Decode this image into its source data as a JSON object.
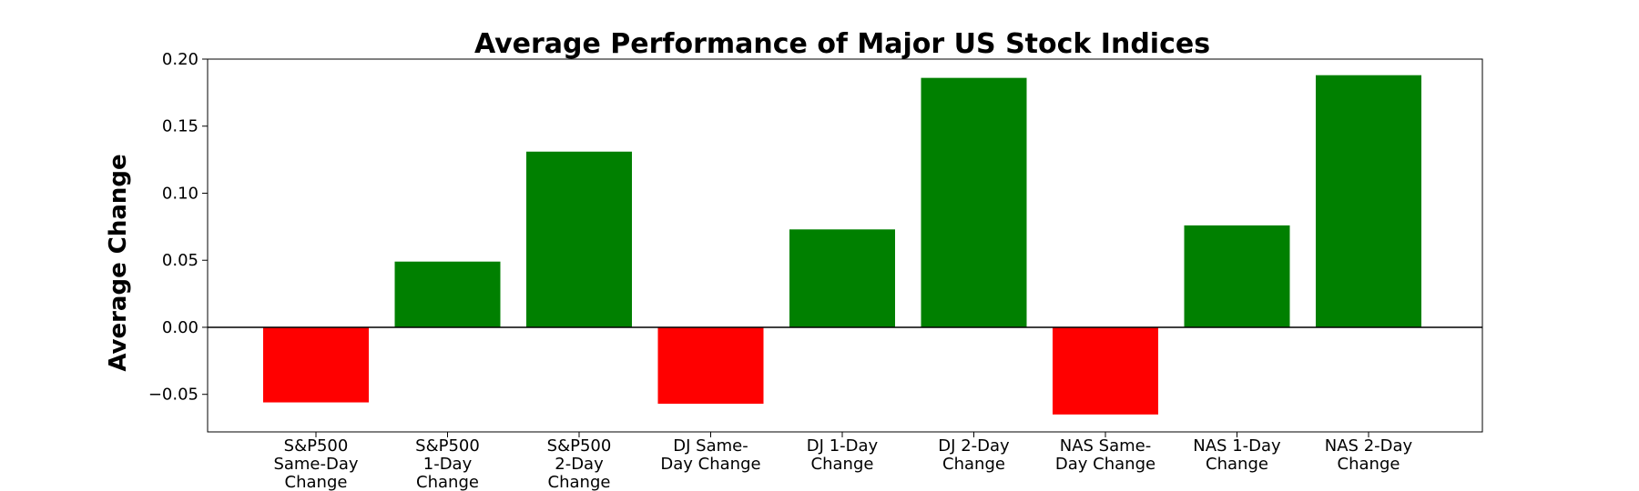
{
  "chart_data": {
    "type": "bar",
    "title": "Average Performance of Major US Stock Indices",
    "xlabel": "",
    "ylabel": "Average Change",
    "categories": [
      [
        "S&P500",
        "Same-Day",
        "Change"
      ],
      [
        "S&P500",
        "1-Day",
        "Change"
      ],
      [
        "S&P500",
        "2-Day",
        "Change"
      ],
      [
        "DJ Same-",
        "Day Change"
      ],
      [
        "DJ 1-Day",
        "Change"
      ],
      [
        "DJ 2-Day",
        "Change"
      ],
      [
        "NAS Same-",
        "Day Change"
      ],
      [
        "NAS 1-Day",
        "Change"
      ],
      [
        "NAS 2-Day",
        "Change"
      ]
    ],
    "values": [
      -0.056,
      0.049,
      0.131,
      -0.057,
      0.073,
      0.186,
      -0.065,
      0.076,
      0.188
    ],
    "ylim": [
      -0.078,
      0.2
    ],
    "yticks": [
      -0.05,
      0.0,
      0.05,
      0.1,
      0.15,
      0.2
    ],
    "ytick_labels": [
      "−0.05",
      "0.00",
      "0.05",
      "0.10",
      "0.15",
      "0.20"
    ],
    "grid": false,
    "legend": "none",
    "colors": {
      "positive": "#008000",
      "negative": "#ff0000",
      "zero_line": "#000000"
    }
  }
}
